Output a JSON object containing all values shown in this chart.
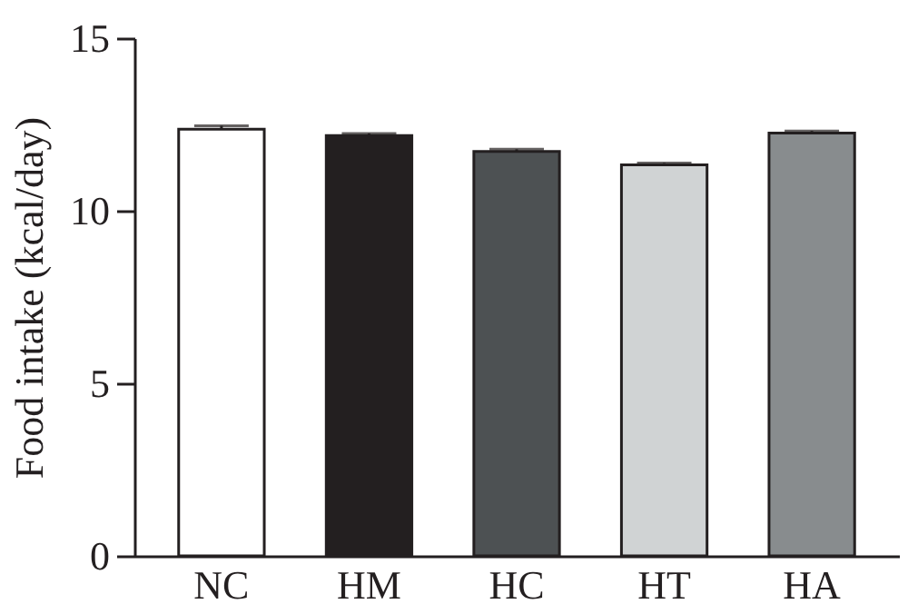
{
  "chart_data": {
    "type": "bar",
    "ylabel": "Food intake (kcal/day)",
    "categories": [
      "NC",
      "HM",
      "HC",
      "HT",
      "HA"
    ],
    "values": [
      12.36,
      12.18,
      11.72,
      11.33,
      12.25
    ],
    "errors": [
      0.1,
      0.06,
      0.06,
      0.05,
      0.06
    ],
    "colors": [
      "#ffffff",
      "#231f20",
      "#4d5153",
      "#d0d3d4",
      "#888c8e"
    ],
    "ylim": [
      0,
      15
    ],
    "yticks": [
      0,
      5,
      10,
      15
    ],
    "grid": false
  }
}
